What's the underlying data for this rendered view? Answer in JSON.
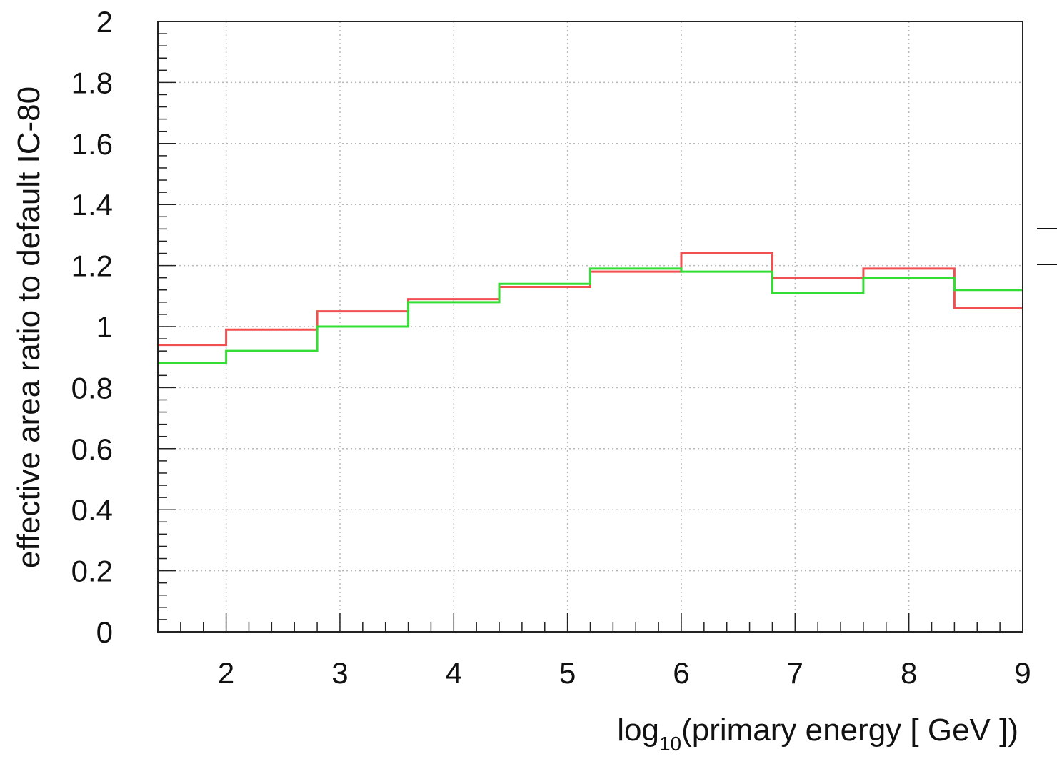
{
  "chart_data": {
    "type": "line",
    "step": true,
    "xlabel": {
      "main": "log",
      "sub": "10",
      "rest": "(primary energy [ GeV ])"
    },
    "ylabel": "effective area ratio to default IC-80",
    "xlim": [
      1.4,
      9
    ],
    "ylim": [
      0,
      2
    ],
    "xticks": [
      2,
      3,
      4,
      5,
      6,
      7,
      8,
      9
    ],
    "xtick_labels": [
      "2",
      "3",
      "4",
      "5",
      "6",
      "7",
      "8",
      "9"
    ],
    "yticks": [
      0,
      0.2,
      0.4,
      0.6,
      0.8,
      1,
      1.2,
      1.4,
      1.6,
      1.8,
      2
    ],
    "ytick_labels": [
      "0",
      "0.2",
      "0.4",
      "0.6",
      "0.8",
      "1",
      "1.2",
      "1.4",
      "1.6",
      "1.8",
      "2"
    ],
    "grid": true,
    "bin_edges": [
      1.4,
      2.0,
      2.8,
      3.6,
      4.4,
      5.2,
      6.0,
      6.8,
      7.6,
      8.4,
      9.0
    ],
    "series": [
      {
        "color": "#f05050",
        "values": [
          0.94,
          0.99,
          1.05,
          1.09,
          1.13,
          1.18,
          1.24,
          1.16,
          1.19,
          1.06
        ]
      },
      {
        "color": "#33dd33",
        "values": [
          0.88,
          0.92,
          1.0,
          1.08,
          1.14,
          1.19,
          1.18,
          1.11,
          1.16,
          1.12
        ]
      }
    ],
    "legend_marks": 2
  }
}
